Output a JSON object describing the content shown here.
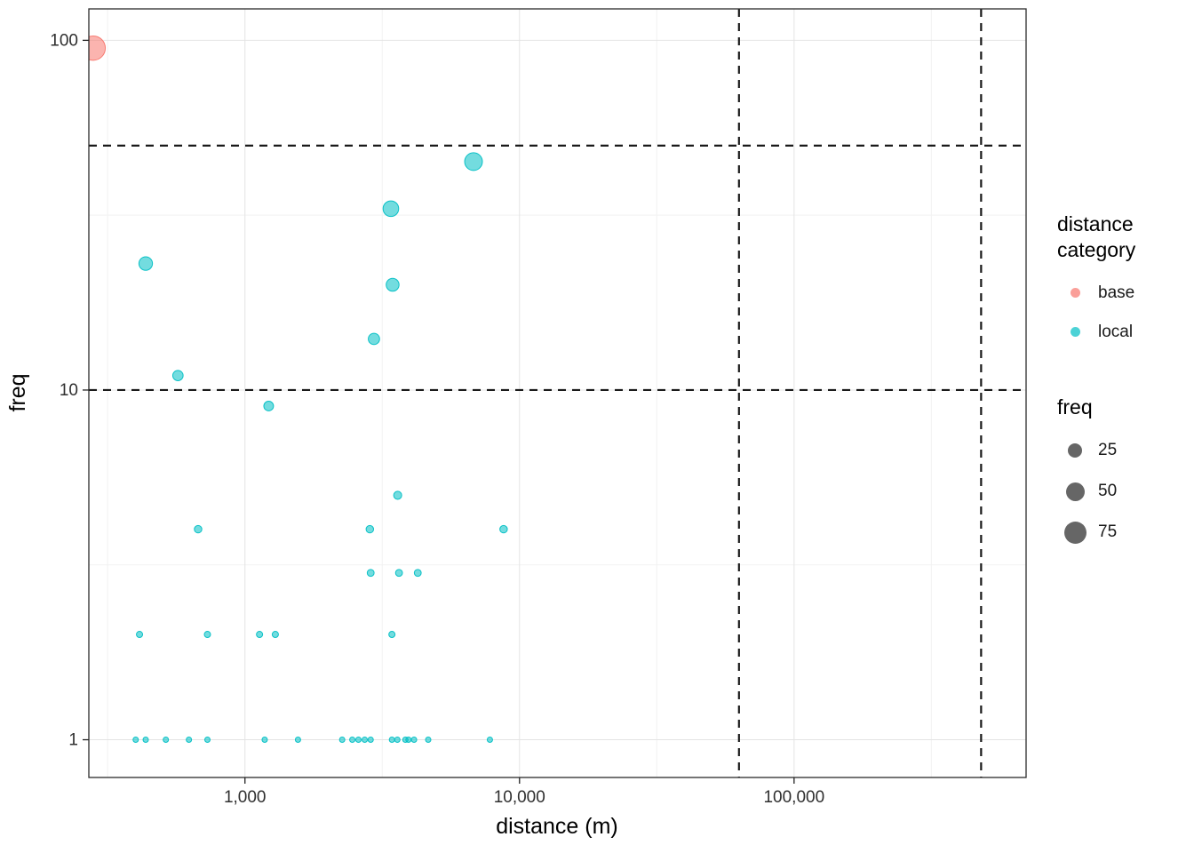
{
  "chart_data": {
    "type": "scatter",
    "title": "",
    "xlabel": "distance (m)",
    "ylabel": "freq",
    "x_scale": "log10",
    "y_scale": "log10",
    "grid": true,
    "x_domain": [
      270,
      700000
    ],
    "y_domain": [
      0.78,
      123
    ],
    "x_ticks": [
      1000,
      10000,
      100000
    ],
    "x_tick_labels": [
      "1,000",
      "10,000",
      "100,000"
    ],
    "x_minor_ticks": [
      316.23,
      3162.3,
      31623,
      316228
    ],
    "y_ticks": [
      1,
      10,
      100
    ],
    "y_tick_labels": [
      "1",
      "10",
      "100"
    ],
    "y_minor_ticks": [
      3.162,
      31.62
    ],
    "hlines": [
      50,
      10
    ],
    "vlines": [
      63000,
      480000
    ],
    "line_style": "dashed",
    "line_color": "#1a1a1a",
    "series": [
      {
        "name": "base",
        "color": "#F8766D",
        "points": [
          [
            280,
            95
          ]
        ]
      },
      {
        "name": "local",
        "color": "#00BFC4",
        "points": [
          [
            6800,
            45
          ],
          [
            3400,
            33
          ],
          [
            435,
            23
          ],
          [
            3450,
            20
          ],
          [
            2950,
            14
          ],
          [
            570,
            11
          ],
          [
            1220,
            9
          ],
          [
            3600,
            5
          ],
          [
            675,
            4
          ],
          [
            2850,
            4
          ],
          [
            8750,
            4
          ],
          [
            2870,
            3
          ],
          [
            3640,
            3
          ],
          [
            4260,
            3
          ],
          [
            413,
            2
          ],
          [
            730,
            2
          ],
          [
            1130,
            2
          ],
          [
            1290,
            2
          ],
          [
            3430,
            2
          ],
          [
            400,
            1
          ],
          [
            435,
            1
          ],
          [
            515,
            1
          ],
          [
            625,
            1
          ],
          [
            730,
            1
          ],
          [
            1180,
            1
          ],
          [
            1560,
            1
          ],
          [
            2260,
            1
          ],
          [
            2460,
            1
          ],
          [
            2590,
            1
          ],
          [
            2730,
            1
          ],
          [
            2870,
            1
          ],
          [
            3430,
            1
          ],
          [
            3590,
            1
          ],
          [
            3840,
            1
          ],
          [
            3940,
            1
          ],
          [
            4130,
            1
          ],
          [
            4650,
            1
          ],
          [
            7800,
            1
          ]
        ]
      }
    ],
    "legend_title_category": "distance category",
    "legend_title_size": "freq",
    "size_legend": [
      25,
      50,
      75
    ],
    "size_legend_color": "#404040",
    "legend_position": "right"
  }
}
